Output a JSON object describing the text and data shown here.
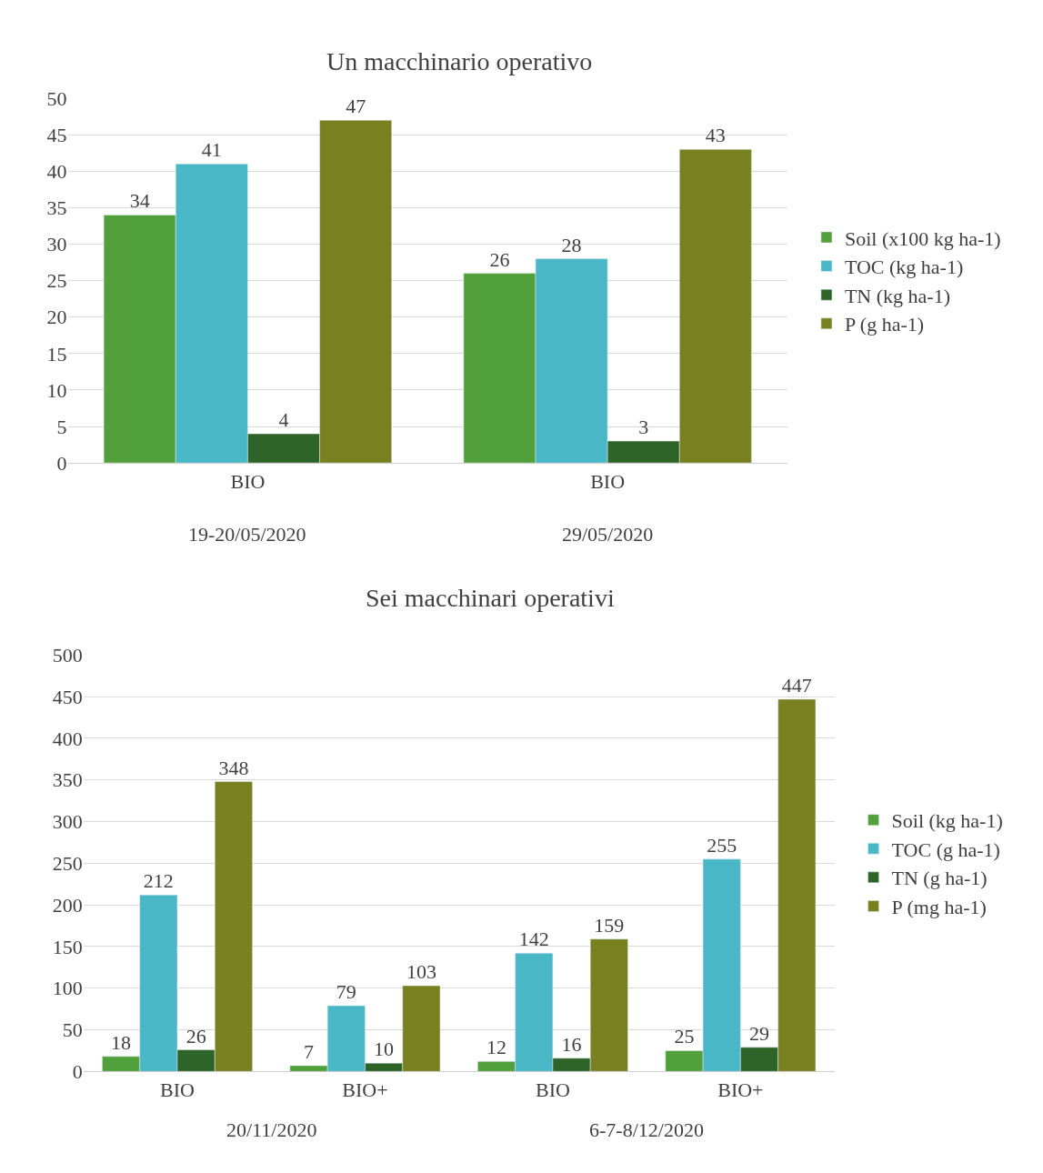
{
  "chart_data": [
    {
      "type": "bar",
      "title": "Un macchinario operativo",
      "categories": [
        "BIO",
        "BIO"
      ],
      "annotations": [
        "19-20/05/2020",
        "29/05/2020"
      ],
      "ylim": [
        0,
        50
      ],
      "yticks": [
        0,
        5,
        10,
        15,
        20,
        25,
        30,
        35,
        40,
        45,
        50
      ],
      "grid": "y",
      "legend": "right",
      "data_labels": true,
      "series": [
        {
          "name": "Soil (x100 kg ha-1)",
          "color": "#52a03b",
          "values": [
            34,
            26
          ]
        },
        {
          "name": "TOC (kg ha-1)",
          "color": "#4ab7c6",
          "values": [
            41,
            28
          ]
        },
        {
          "name": "TN (kg ha-1)",
          "color": "#2e6428",
          "values": [
            4,
            3
          ]
        },
        {
          "name": "P (g ha-1)",
          "color": "#788020",
          "values": [
            47,
            43
          ]
        }
      ]
    },
    {
      "type": "bar",
      "title": "Sei macchinari operativi",
      "categories": [
        "BIO",
        "BIO+",
        "BIO",
        "BIO+"
      ],
      "annotations": [
        "20/11/2020",
        "6-7-8/12/2020"
      ],
      "ylim": [
        0,
        500
      ],
      "yticks": [
        0,
        50,
        100,
        150,
        200,
        250,
        300,
        350,
        400,
        450,
        500
      ],
      "grid": "y",
      "legend": "right",
      "data_labels": true,
      "series": [
        {
          "name": "Soil (kg ha-1)",
          "color": "#52a03b",
          "values": [
            18,
            7,
            12,
            25
          ]
        },
        {
          "name": "TOC (g ha-1)",
          "color": "#4ab7c6",
          "values": [
            212,
            79,
            142,
            255
          ]
        },
        {
          "name": "TN (g ha-1)",
          "color": "#2e6428",
          "values": [
            26,
            10,
            16,
            29
          ]
        },
        {
          "name": "P (mg ha-1)",
          "color": "#788020",
          "values": [
            348,
            103,
            159,
            447
          ]
        }
      ]
    }
  ]
}
